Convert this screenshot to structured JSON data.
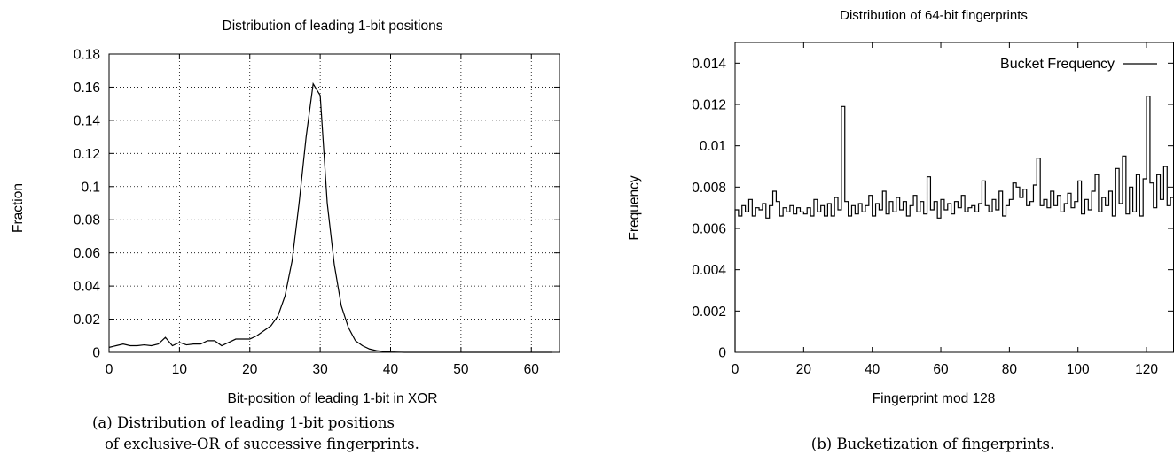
{
  "chart_data": [
    {
      "type": "line",
      "title": "Distribution of leading 1-bit positions",
      "xlabel": "Bit-position of leading 1-bit in XOR",
      "ylabel": "Fraction",
      "xlim": [
        0,
        64
      ],
      "ylim": [
        0,
        0.18
      ],
      "xticks": [
        0,
        10,
        20,
        30,
        40,
        50,
        60
      ],
      "yticks": [
        0,
        0.02,
        0.04,
        0.06,
        0.08,
        0.1,
        0.12,
        0.14,
        0.16,
        0.18
      ],
      "xtick_labels": [
        "0",
        "10",
        "20",
        "30",
        "40",
        "50",
        "60"
      ],
      "ytick_labels": [
        "0",
        "0.02",
        "0.04",
        "0.06",
        "0.08",
        "0.1",
        "0.12",
        "0.14",
        "0.16",
        "0.18"
      ],
      "grid": true,
      "legend": "none",
      "caption_line1": "(a) Distribution of leading 1-bit positions",
      "caption_line2": "of exclusive-OR of successive fingerprints.",
      "x": [
        0,
        1,
        2,
        3,
        4,
        5,
        6,
        7,
        8,
        9,
        10,
        11,
        12,
        13,
        14,
        15,
        16,
        17,
        18,
        19,
        20,
        21,
        22,
        23,
        24,
        25,
        26,
        27,
        28,
        29,
        30,
        31,
        32,
        33,
        34,
        35,
        36,
        37,
        38,
        39,
        40,
        41,
        42,
        43,
        44,
        45,
        46,
        47,
        48,
        49,
        50,
        51,
        52,
        53,
        54,
        55,
        56,
        57,
        58,
        59,
        60,
        61,
        62,
        63
      ],
      "y": [
        0.003,
        0.004,
        0.005,
        0.004,
        0.004,
        0.0045,
        0.004,
        0.005,
        0.009,
        0.004,
        0.006,
        0.0045,
        0.005,
        0.005,
        0.007,
        0.007,
        0.004,
        0.006,
        0.008,
        0.008,
        0.008,
        0.01,
        0.013,
        0.016,
        0.022,
        0.034,
        0.055,
        0.09,
        0.13,
        0.162,
        0.155,
        0.09,
        0.053,
        0.028,
        0.015,
        0.007,
        0.004,
        0.002,
        0.001,
        0.0005,
        0.0002,
        0.0001,
        0,
        0,
        0,
        0,
        0,
        0,
        0,
        0,
        0,
        0,
        0,
        0,
        0,
        0,
        0,
        0,
        0,
        0,
        0,
        0,
        0,
        0
      ]
    },
    {
      "type": "line",
      "style": "steps",
      "title": "Distribution of 64-bit fingerprints",
      "xlabel": "Fingerprint mod 128",
      "ylabel": "Frequency",
      "xlim": [
        0,
        128
      ],
      "ylim": [
        0,
        0.015
      ],
      "xticks": [
        0,
        20,
        40,
        60,
        80,
        100,
        120
      ],
      "yticks": [
        0,
        0.002,
        0.004,
        0.006,
        0.008,
        0.01,
        0.012,
        0.014
      ],
      "xtick_labels": [
        "0",
        "20",
        "40",
        "60",
        "80",
        "100",
        "120"
      ],
      "ytick_labels": [
        "0",
        "0.002",
        "0.004",
        "0.006",
        "0.008",
        "0.01",
        "0.012",
        "0.014"
      ],
      "grid": false,
      "legend": "top-right",
      "series": [
        {
          "name": "Bucket Frequency",
          "x": [
            0,
            1,
            2,
            3,
            4,
            5,
            6,
            7,
            8,
            9,
            10,
            11,
            12,
            13,
            14,
            15,
            16,
            17,
            18,
            19,
            20,
            21,
            22,
            23,
            24,
            25,
            26,
            27,
            28,
            29,
            30,
            31,
            32,
            33,
            34,
            35,
            36,
            37,
            38,
            39,
            40,
            41,
            42,
            43,
            44,
            45,
            46,
            47,
            48,
            49,
            50,
            51,
            52,
            53,
            54,
            55,
            56,
            57,
            58,
            59,
            60,
            61,
            62,
            63,
            64,
            65,
            66,
            67,
            68,
            69,
            70,
            71,
            72,
            73,
            74,
            75,
            76,
            77,
            78,
            79,
            80,
            81,
            82,
            83,
            84,
            85,
            86,
            87,
            88,
            89,
            90,
            91,
            92,
            93,
            94,
            95,
            96,
            97,
            98,
            99,
            100,
            101,
            102,
            103,
            104,
            105,
            106,
            107,
            108,
            109,
            110,
            111,
            112,
            113,
            114,
            115,
            116,
            117,
            118,
            119,
            120,
            121,
            122,
            123,
            124,
            125,
            126,
            127
          ],
          "values": [
            0.0069,
            0.0066,
            0.0071,
            0.0068,
            0.0074,
            0.0066,
            0.007,
            0.0069,
            0.0072,
            0.0065,
            0.0071,
            0.0078,
            0.0073,
            0.0066,
            0.007,
            0.0068,
            0.0071,
            0.0067,
            0.007,
            0.0068,
            0.0067,
            0.007,
            0.0066,
            0.0074,
            0.0068,
            0.0071,
            0.0066,
            0.0072,
            0.0066,
            0.0075,
            0.0069,
            0.0119,
            0.0073,
            0.0066,
            0.0071,
            0.0067,
            0.0072,
            0.0068,
            0.0071,
            0.0076,
            0.0066,
            0.0072,
            0.0069,
            0.0078,
            0.0067,
            0.0073,
            0.0068,
            0.0075,
            0.0069,
            0.0073,
            0.0066,
            0.0071,
            0.0076,
            0.0068,
            0.0073,
            0.0067,
            0.0085,
            0.0069,
            0.0073,
            0.0065,
            0.0074,
            0.0069,
            0.0072,
            0.0067,
            0.0073,
            0.007,
            0.0076,
            0.0068,
            0.007,
            0.0071,
            0.0068,
            0.0072,
            0.0083,
            0.0071,
            0.0068,
            0.0074,
            0.0069,
            0.0078,
            0.0066,
            0.0071,
            0.0074,
            0.0082,
            0.008,
            0.0075,
            0.0079,
            0.0071,
            0.0073,
            0.0081,
            0.0094,
            0.0071,
            0.0074,
            0.007,
            0.0078,
            0.0071,
            0.0076,
            0.0068,
            0.0072,
            0.0077,
            0.007,
            0.0073,
            0.0083,
            0.0067,
            0.0074,
            0.0069,
            0.0078,
            0.0086,
            0.0068,
            0.0075,
            0.0071,
            0.0078,
            0.0066,
            0.0089,
            0.0072,
            0.0095,
            0.0067,
            0.008,
            0.0068,
            0.0086,
            0.0066,
            0.0084,
            0.0124,
            0.0082,
            0.007,
            0.0086,
            0.0074,
            0.009,
            0.0071,
            0.0075
          ]
        }
      ]
    }
  ],
  "captions": {
    "b": "(b) Bucketization of fingerprints."
  }
}
